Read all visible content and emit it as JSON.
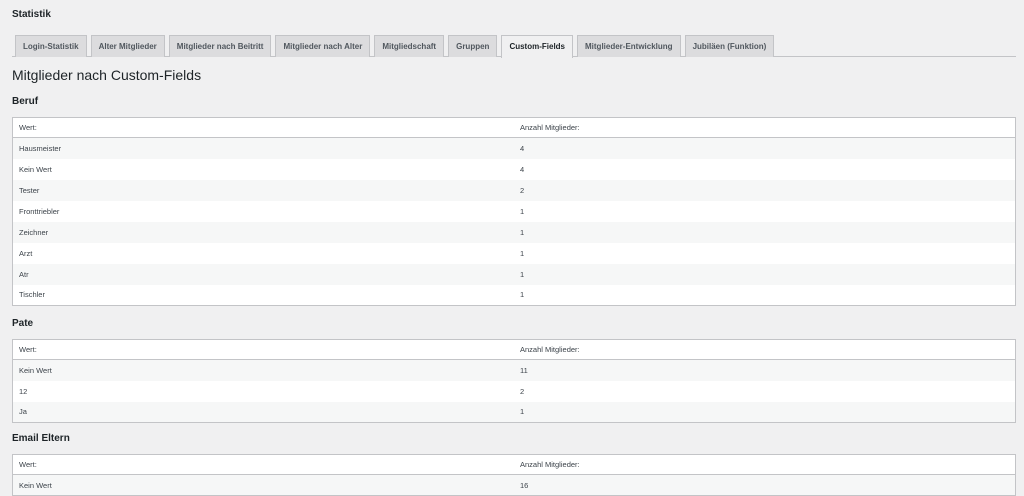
{
  "app_title": "Statistik",
  "tabs": [
    {
      "label": "Login-Statistik",
      "active": false
    },
    {
      "label": "Alter Mitglieder",
      "active": false
    },
    {
      "label": "Mitglieder nach Beitritt",
      "active": false
    },
    {
      "label": "Mitglieder nach Alter",
      "active": false
    },
    {
      "label": "Mitgliedschaft",
      "active": false
    },
    {
      "label": "Gruppen",
      "active": false
    },
    {
      "label": "Custom-Fields",
      "active": true
    },
    {
      "label": "Mitglieder-Entwicklung",
      "active": false
    },
    {
      "label": "Jubiläen (Funktion)",
      "active": false
    }
  ],
  "page_title": "Mitglieder nach Custom-Fields",
  "sections": [
    {
      "title": "Beruf",
      "columns": [
        "Wert:",
        "Anzahl Mitglieder:"
      ],
      "rows": [
        [
          "Hausmeister",
          "4"
        ],
        [
          "Kein Wert",
          "4"
        ],
        [
          "Tester",
          "2"
        ],
        [
          "Fronttriebler",
          "1"
        ],
        [
          "Zeichner",
          "1"
        ],
        [
          "Arzt",
          "1"
        ],
        [
          "Atr",
          "1"
        ],
        [
          "Tischler",
          "1"
        ]
      ]
    },
    {
      "title": "Pate",
      "columns": [
        "Wert:",
        "Anzahl Mitglieder:"
      ],
      "rows": [
        [
          "Kein Wert",
          "11"
        ],
        [
          "12",
          "2"
        ],
        [
          "Ja",
          "1"
        ]
      ]
    },
    {
      "title": "Email Eltern",
      "columns": [
        "Wert:",
        "Anzahl Mitglieder:"
      ],
      "rows": [
        [
          "Kein Wert",
          "16"
        ]
      ]
    }
  ]
}
